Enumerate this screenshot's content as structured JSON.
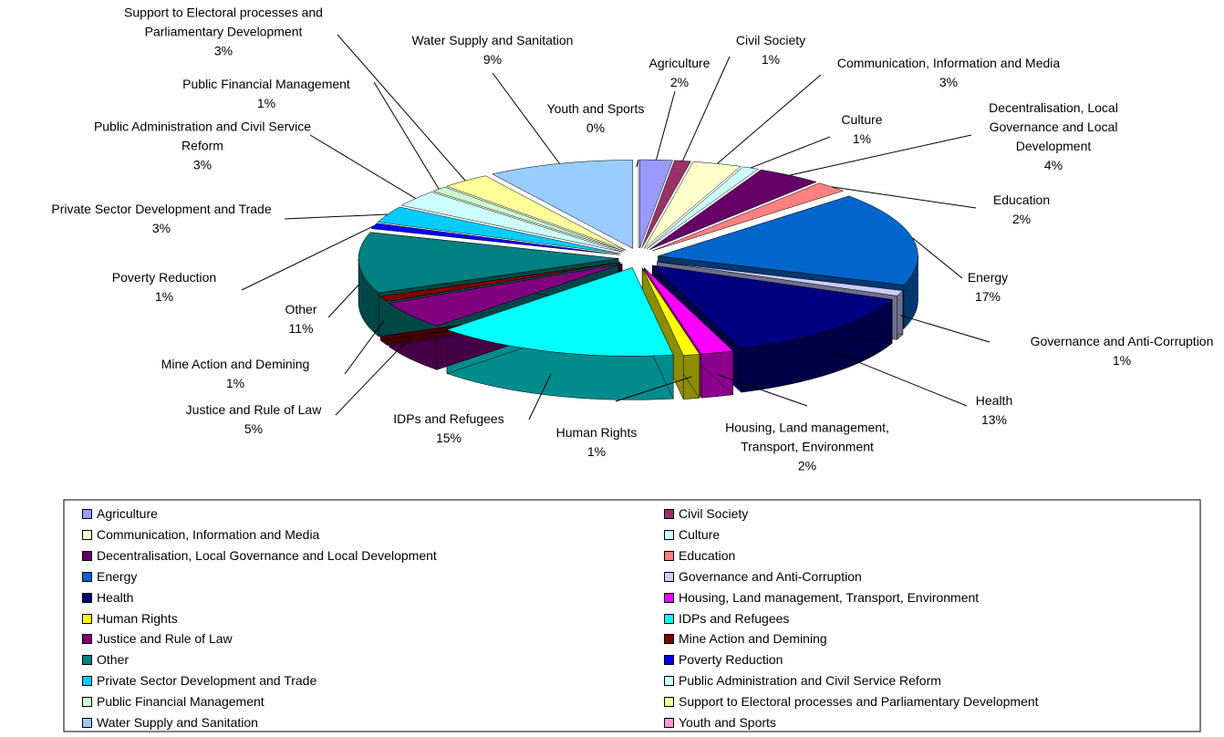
{
  "chart_data": {
    "type": "pie",
    "categories": [
      "Agriculture",
      "Civil Society",
      "Communication, Information and Media",
      "Culture",
      "Decentralisation, Local Governance and Local Development",
      "Education",
      "Energy",
      "Governance and Anti-Corruption",
      "Health",
      "Housing, Land management, Transport, Environment",
      "Human Rights",
      "IDPs and Refugees",
      "Justice and Rule of Law",
      "Mine Action and Demining",
      "Other",
      "Poverty Reduction",
      "Private Sector Development and Trade",
      "Public Administration and Civil Service Reform",
      "Public Financial Management",
      "Support to Electoral processes and Parliamentary Development",
      "Water Supply and Sanitation",
      "Youth and Sports"
    ],
    "values": [
      2,
      1,
      3,
      1,
      4,
      2,
      17,
      1,
      13,
      2,
      1,
      15,
      5,
      1,
      11,
      1,
      3,
      3,
      1,
      3,
      9,
      0
    ],
    "value_labels": [
      "2%",
      "1%",
      "3%",
      "1%",
      "4%",
      "2%",
      "17%",
      "1%",
      "13%",
      "2%",
      "1%",
      "15%",
      "5%",
      "1%",
      "11%",
      "1%",
      "3%",
      "3%",
      "1%",
      "3%",
      "9%",
      "0%"
    ],
    "colors": [
      "#9999ff",
      "#993366",
      "#ffffcc",
      "#ccffff",
      "#660066",
      "#ff8080",
      "#0066cc",
      "#ccccff",
      "#000080",
      "#ff00ff",
      "#ffff00",
      "#00ffff",
      "#800080",
      "#800000",
      "#008080",
      "#0000ff",
      "#00ccff",
      "#ccffff",
      "#ccffcc",
      "#ffff99",
      "#99ccff",
      "#ff99cc"
    ],
    "legend": "bottom"
  }
}
